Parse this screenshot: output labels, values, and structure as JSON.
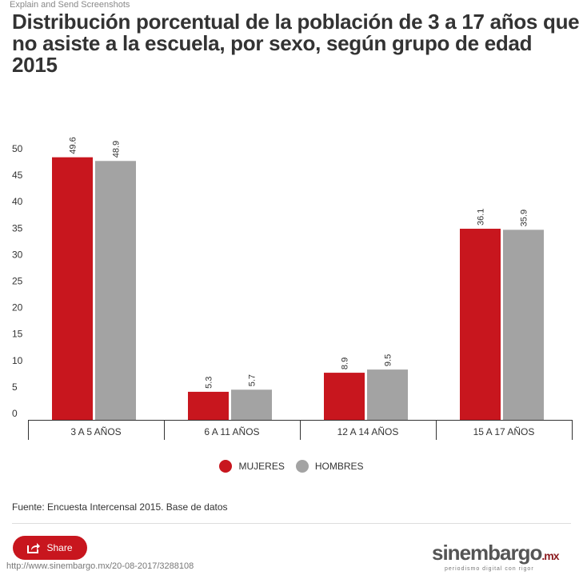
{
  "watermark": "Explain and Send Screenshots",
  "chart_data": {
    "type": "bar",
    "title": "Distribución porcentual de la población de 3 a 17 años que no asiste a la escuela, por sexo, según grupo de edad",
    "subtitle": "2015",
    "categories": [
      "3 A 5 AÑOS",
      "6 A 11 AÑOS",
      "12 A 14 AÑOS",
      "15 A 17 AÑOS"
    ],
    "series": [
      {
        "name": "MUJERES",
        "color": "#c8161e",
        "values": [
          49.6,
          5.3,
          8.9,
          36.1
        ]
      },
      {
        "name": "HOMBRES",
        "color": "#a3a3a3",
        "values": [
          48.9,
          5.7,
          9.5,
          35.9
        ]
      }
    ],
    "yticks": [
      0,
      5,
      10,
      15,
      20,
      25,
      30,
      35,
      40,
      45,
      50
    ],
    "ylim": [
      0,
      50
    ],
    "grid": false,
    "legend": "bottom"
  },
  "source": "Fuente: Encuesta Intercensal 2015. Base de datos",
  "share_label": "Share",
  "url": "http://www.sinembargo.mx/20-08-2017/3288108",
  "logo": {
    "main": "sinembargo",
    "suffix": ".mx",
    "tagline": "periodismo digital con rigor"
  }
}
